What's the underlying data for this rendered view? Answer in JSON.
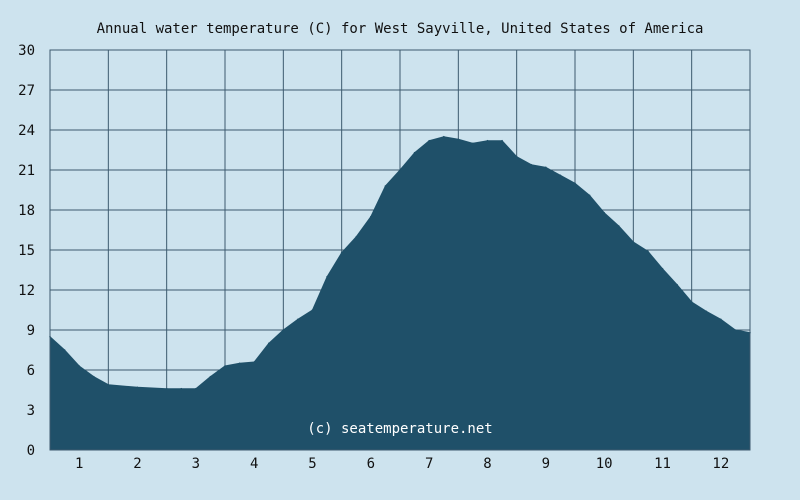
{
  "chart_data": {
    "type": "area",
    "title": "Annual water temperature (C) for West Sayville, United States of America",
    "xlabel": "",
    "ylabel": "",
    "x_ticks": [
      "1",
      "2",
      "3",
      "4",
      "5",
      "6",
      "7",
      "8",
      "9",
      "10",
      "11",
      "12"
    ],
    "xlim": [
      0.5,
      12.5
    ],
    "ylim": [
      0,
      30
    ],
    "y_ticks": [
      0,
      3,
      6,
      9,
      12,
      15,
      18,
      21,
      24,
      27,
      30
    ],
    "grid": true,
    "x": [
      0.5,
      0.75,
      1.0,
      1.25,
      1.5,
      2.0,
      2.5,
      2.75,
      3.0,
      3.25,
      3.5,
      3.75,
      4.0,
      4.25,
      4.5,
      4.75,
      5.0,
      5.25,
      5.5,
      5.75,
      6.0,
      6.25,
      6.5,
      6.75,
      7.0,
      7.25,
      7.5,
      7.75,
      8.0,
      8.25,
      8.5,
      8.75,
      9.0,
      9.25,
      9.5,
      9.75,
      10.0,
      10.25,
      10.5,
      10.75,
      11.0,
      11.25,
      11.5,
      11.75,
      12.0,
      12.25,
      12.5
    ],
    "values": [
      8.5,
      7.5,
      6.3,
      5.5,
      4.9,
      4.7,
      4.6,
      4.6,
      4.6,
      5.5,
      6.3,
      6.5,
      6.6,
      8.0,
      9.0,
      9.8,
      10.5,
      13.0,
      14.8,
      16.0,
      17.5,
      19.8,
      21.0,
      22.3,
      23.2,
      23.5,
      23.3,
      23.0,
      23.2,
      23.2,
      22.0,
      21.4,
      21.2,
      20.6,
      20.0,
      19.1,
      17.8,
      16.8,
      15.6,
      14.9,
      13.6,
      12.4,
      11.1,
      10.4,
      9.8,
      9.0,
      8.8
    ],
    "fill_color": "#1f5069",
    "plot_background": "#cde3ee",
    "grid_color": "#3d5a6e",
    "watermark": "(c) seatemperature.net"
  }
}
